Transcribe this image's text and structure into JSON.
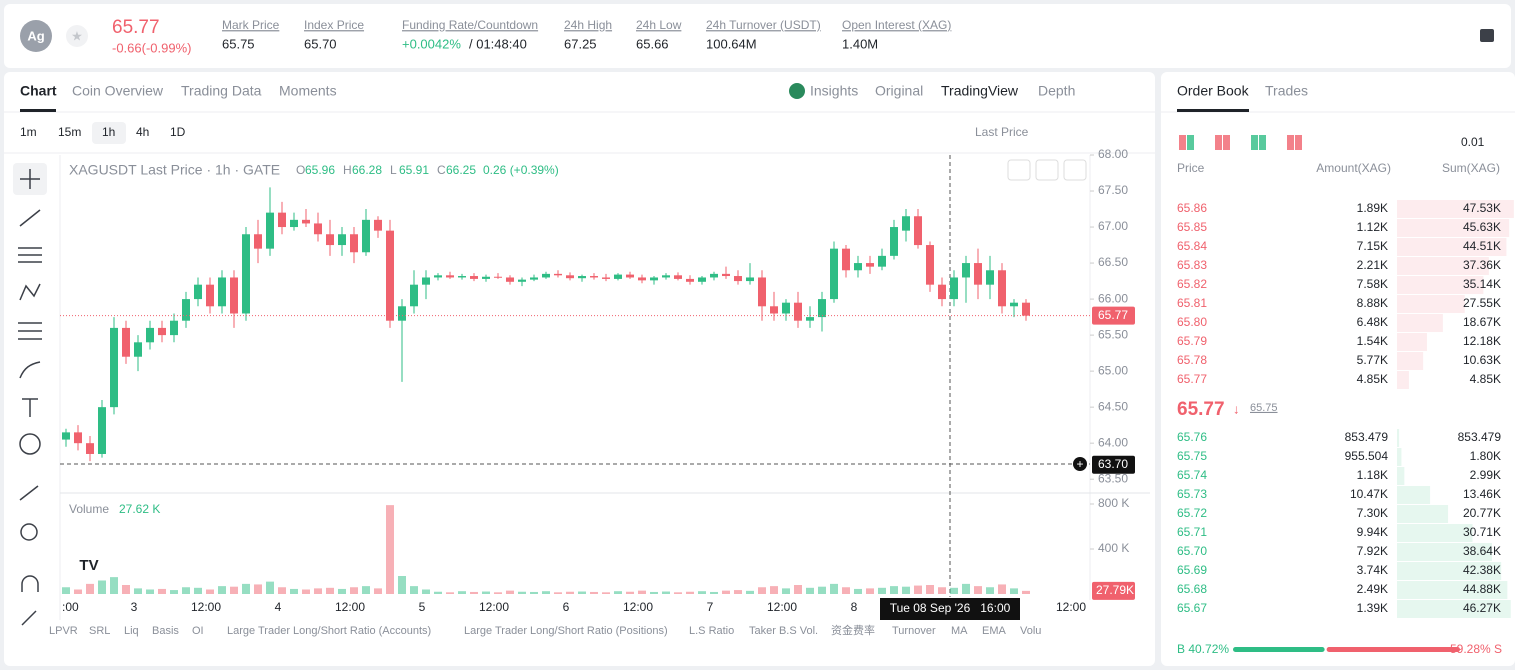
{
  "header": {
    "avatar": "Ag",
    "price": "65.77",
    "change": "-0.66(-0.99%)",
    "stats": [
      {
        "label": "Mark Price",
        "value": "65.75"
      },
      {
        "label": "Index Price",
        "value": "65.70"
      },
      {
        "label": "Funding Rate/Countdown",
        "value": "+0.0042%",
        "countdown": "/ 01:48:40"
      },
      {
        "label": "24h High",
        "value": "67.25"
      },
      {
        "label": "24h Low",
        "value": "65.66"
      },
      {
        "label": "24h Turnover (USDT)",
        "value": "100.64M"
      },
      {
        "label": "Open Interest (XAG)",
        "value": "1.40M"
      }
    ]
  },
  "tabs": [
    "Chart",
    "Coin Overview",
    "Trading Data",
    "Moments"
  ],
  "views": [
    "Insights",
    "Original",
    "TradingView",
    "Depth"
  ],
  "intervals": [
    "1m",
    "15m",
    "1h",
    "4h",
    "1D"
  ],
  "price_type": "Last Price",
  "chart": {
    "legend": "XAGUSDT Last Price · 1h · GATE",
    "ohlc": [
      {
        "key": "O",
        "value": "65.96"
      },
      {
        "key": "H",
        "value": "66.28"
      },
      {
        "key": "L",
        "value": "65.91"
      },
      {
        "key": "C",
        "value": "66.25"
      }
    ],
    "change": "0.26 (+0.39%)",
    "ylim": [
      63.35,
      68.0
    ],
    "yticks": [
      {
        "value": 68,
        "label": "68.00"
      },
      {
        "value": 67.5,
        "label": "67.50"
      },
      {
        "value": 67,
        "label": "67.00"
      },
      {
        "value": 66.5,
        "label": "66.50"
      },
      {
        "value": 66,
        "label": "66.00"
      },
      {
        "value": 65.5,
        "label": "65.50"
      },
      {
        "value": 65,
        "label": "65.00"
      },
      {
        "value": 64.5,
        "label": "64.50"
      },
      {
        "value": 64,
        "label": "64.00"
      },
      {
        "value": 63.5,
        "label": "63.50"
      }
    ],
    "last_price": {
      "value": 65.77,
      "label": "65.77"
    },
    "cursor_price": {
      "value": 63.7,
      "label": "63.70"
    },
    "candles": [
      [
        64.05,
        64.2,
        63.95,
        64.15
      ],
      [
        64.15,
        64.25,
        63.9,
        64.0
      ],
      [
        64.0,
        64.1,
        63.75,
        63.85
      ],
      [
        63.85,
        64.6,
        63.8,
        64.5
      ],
      [
        64.5,
        65.75,
        64.4,
        65.6
      ],
      [
        65.6,
        65.7,
        65.1,
        65.2
      ],
      [
        65.2,
        65.5,
        65.0,
        65.4
      ],
      [
        65.4,
        65.7,
        65.3,
        65.6
      ],
      [
        65.6,
        65.7,
        65.4,
        65.5
      ],
      [
        65.5,
        65.8,
        65.4,
        65.7
      ],
      [
        65.7,
        66.1,
        65.6,
        66.0
      ],
      [
        66.0,
        66.3,
        65.9,
        66.2
      ],
      [
        66.2,
        66.3,
        65.8,
        65.9
      ],
      [
        65.9,
        66.4,
        65.8,
        66.3
      ],
      [
        66.3,
        66.4,
        65.6,
        65.8
      ],
      [
        65.8,
        67.0,
        65.7,
        66.9
      ],
      [
        66.9,
        67.1,
        66.5,
        66.7
      ],
      [
        66.7,
        67.55,
        66.6,
        67.2
      ],
      [
        67.2,
        67.35,
        66.9,
        67.0
      ],
      [
        67.0,
        67.2,
        66.95,
        67.1
      ],
      [
        67.1,
        67.25,
        67.0,
        67.05
      ],
      [
        67.05,
        67.2,
        66.8,
        66.9
      ],
      [
        66.9,
        67.1,
        66.6,
        66.75
      ],
      [
        66.75,
        67.0,
        66.6,
        66.9
      ],
      [
        66.9,
        67.0,
        66.5,
        66.65
      ],
      [
        66.65,
        67.25,
        66.6,
        67.1
      ],
      [
        67.1,
        67.15,
        66.85,
        66.95
      ],
      [
        66.95,
        67.1,
        65.6,
        65.7
      ],
      [
        65.7,
        66.0,
        64.85,
        65.9
      ],
      [
        65.9,
        66.4,
        65.8,
        66.2
      ],
      [
        66.2,
        66.4,
        66.0,
        66.3
      ],
      [
        66.3,
        66.36,
        66.26,
        66.33
      ],
      [
        66.33,
        66.38,
        66.28,
        66.3
      ],
      [
        66.3,
        66.35,
        66.27,
        66.32
      ],
      [
        66.32,
        66.36,
        66.25,
        66.28
      ],
      [
        66.28,
        66.34,
        66.24,
        66.31
      ],
      [
        66.31,
        66.36,
        66.28,
        66.3
      ],
      [
        66.3,
        66.33,
        66.2,
        66.24
      ],
      [
        66.24,
        66.3,
        66.18,
        66.27
      ],
      [
        66.27,
        66.34,
        66.25,
        66.3
      ],
      [
        66.3,
        66.38,
        66.28,
        66.35
      ],
      [
        66.35,
        66.4,
        66.3,
        66.33
      ],
      [
        66.33,
        66.37,
        66.26,
        66.29
      ],
      [
        66.29,
        66.34,
        66.24,
        66.32
      ],
      [
        66.32,
        66.36,
        66.27,
        66.3
      ],
      [
        66.3,
        66.35,
        66.25,
        66.28
      ],
      [
        66.28,
        66.36,
        66.26,
        66.34
      ],
      [
        66.34,
        66.38,
        66.28,
        66.3
      ],
      [
        66.3,
        66.34,
        66.22,
        66.26
      ],
      [
        66.26,
        66.32,
        66.2,
        66.3
      ],
      [
        66.3,
        66.36,
        66.27,
        66.33
      ],
      [
        66.33,
        66.37,
        66.26,
        66.28
      ],
      [
        66.28,
        66.33,
        66.2,
        66.24
      ],
      [
        66.24,
        66.32,
        66.2,
        66.3
      ],
      [
        66.3,
        66.38,
        66.26,
        66.35
      ],
      [
        66.35,
        66.45,
        66.28,
        66.32
      ],
      [
        66.32,
        66.4,
        66.2,
        66.25
      ],
      [
        66.25,
        66.5,
        66.2,
        66.3
      ],
      [
        66.3,
        66.4,
        65.7,
        65.9
      ],
      [
        65.9,
        66.1,
        65.7,
        65.8
      ],
      [
        65.8,
        66.0,
        65.7,
        65.95
      ],
      [
        65.95,
        66.1,
        65.6,
        65.7
      ],
      [
        65.7,
        65.9,
        65.6,
        65.75
      ],
      [
        65.75,
        66.1,
        65.55,
        66.0
      ],
      [
        66.0,
        66.8,
        65.95,
        66.7
      ],
      [
        66.7,
        66.75,
        66.3,
        66.4
      ],
      [
        66.4,
        66.6,
        66.3,
        66.5
      ],
      [
        66.5,
        66.6,
        66.35,
        66.45
      ],
      [
        66.45,
        66.7,
        66.4,
        66.6
      ],
      [
        66.6,
        67.1,
        66.55,
        67.0
      ],
      [
        66.95,
        67.25,
        66.8,
        67.15
      ],
      [
        67.15,
        67.25,
        66.7,
        66.75
      ],
      [
        66.75,
        66.8,
        66.1,
        66.2
      ],
      [
        66.2,
        66.3,
        65.9,
        66.0
      ],
      [
        66.0,
        66.4,
        65.9,
        66.3
      ],
      [
        66.3,
        66.6,
        65.95,
        66.5
      ],
      [
        66.5,
        66.7,
        66.0,
        66.2
      ],
      [
        66.2,
        66.6,
        66.0,
        66.4
      ],
      [
        66.4,
        66.5,
        65.8,
        65.9
      ],
      [
        65.9,
        66.0,
        65.75,
        65.95
      ],
      [
        65.95,
        66.0,
        65.7,
        65.77
      ]
    ],
    "volume_label": "Volume",
    "volume_value": "27.62 K",
    "vlim": [
      0,
      800000
    ],
    "vticks": [
      {
        "value": 800000,
        "label": "800 K"
      },
      {
        "value": 400000,
        "label": "400 K"
      }
    ],
    "last_volume": {
      "value": 27790,
      "label": "27.79K"
    },
    "volumes": [
      60000,
      40000,
      90000,
      120000,
      150000,
      80000,
      50000,
      40000,
      45000,
      35000,
      60000,
      55000,
      40000,
      70000,
      65000,
      90000,
      85000,
      110000,
      60000,
      45000,
      40000,
      50000,
      55000,
      45000,
      60000,
      70000,
      50000,
      790000,
      160000,
      70000,
      40000,
      20000,
      15000,
      25000,
      18000,
      22000,
      15000,
      30000,
      20000,
      18000,
      25000,
      15000,
      20000,
      22000,
      18000,
      15000,
      25000,
      20000,
      30000,
      18000,
      22000,
      15000,
      20000,
      25000,
      18000,
      30000,
      35000,
      28000,
      60000,
      70000,
      50000,
      80000,
      55000,
      65000,
      90000,
      60000,
      45000,
      50000,
      55000,
      70000,
      65000,
      75000,
      80000,
      60000,
      55000,
      90000,
      70000,
      60000,
      85000,
      50000,
      27790
    ],
    "time_labels": [
      ":00",
      "3",
      "12:00",
      "4",
      "12:00",
      "5",
      "12:00",
      "6",
      "12:00",
      "7",
      "12:00",
      "8",
      "12:00"
    ],
    "cursor_time": "Tue 08 Sep '26   16:00",
    "indicators": [
      "LPVR",
      "SRL",
      "Liq",
      "Basis",
      "OI",
      "Large Trader Long/Short Ratio (Accounts)",
      "Large Trader Long/Short Ratio (Positions)",
      "L.S Ratio",
      "Taker B.S Vol.",
      "资金费率",
      "Turnover",
      "MA",
      "EMA",
      "Volu"
    ]
  },
  "order_book": {
    "tabs": [
      "Order Book",
      "Trades"
    ],
    "precision": "0.01",
    "columns": [
      "Price",
      "Amount(XAG)",
      "Sum(XAG)"
    ],
    "asks": [
      {
        "price": "65.86",
        "amount": "1.89K",
        "sum": {
          "value": 47530,
          "label": "47.53K"
        }
      },
      {
        "price": "65.85",
        "amount": "1.12K",
        "sum": {
          "value": 45630,
          "label": "45.63K"
        }
      },
      {
        "price": "65.84",
        "amount": "7.15K",
        "sum": {
          "value": 44510,
          "label": "44.51K"
        }
      },
      {
        "price": "65.83",
        "amount": "2.21K",
        "sum": {
          "value": 37360,
          "label": "37.36K"
        }
      },
      {
        "price": "65.82",
        "amount": "7.58K",
        "sum": {
          "value": 35140,
          "label": "35.14K"
        }
      },
      {
        "price": "65.81",
        "amount": "8.88K",
        "sum": {
          "value": 27550,
          "label": "27.55K"
        }
      },
      {
        "price": "65.80",
        "amount": "6.48K",
        "sum": {
          "value": 18670,
          "label": "18.67K"
        }
      },
      {
        "price": "65.79",
        "amount": "1.54K",
        "sum": {
          "value": 12180,
          "label": "12.18K"
        }
      },
      {
        "price": "65.78",
        "amount": "5.77K",
        "sum": {
          "value": 10630,
          "label": "10.63K"
        }
      },
      {
        "price": "65.77",
        "amount": "4.85K",
        "sum": {
          "value": 4850,
          "label": "4.85K"
        }
      }
    ],
    "last": "65.77",
    "mark": "65.75",
    "bids": [
      {
        "price": "65.76",
        "amount": "853.479",
        "sum": {
          "value": 853.479,
          "label": "853.479"
        }
      },
      {
        "price": "65.75",
        "amount": "955.504",
        "sum": {
          "value": 1800,
          "label": "1.80K"
        }
      },
      {
        "price": "65.74",
        "amount": "1.18K",
        "sum": {
          "value": 2990,
          "label": "2.99K"
        }
      },
      {
        "price": "65.73",
        "amount": "10.47K",
        "sum": {
          "value": 13460,
          "label": "13.46K"
        }
      },
      {
        "price": "65.72",
        "amount": "7.30K",
        "sum": {
          "value": 20770,
          "label": "20.77K"
        }
      },
      {
        "price": "65.71",
        "amount": "9.94K",
        "sum": {
          "value": 30710,
          "label": "30.71K"
        }
      },
      {
        "price": "65.70",
        "amount": "7.92K",
        "sum": {
          "value": 38640,
          "label": "38.64K"
        }
      },
      {
        "price": "65.69",
        "amount": "3.74K",
        "sum": {
          "value": 42380,
          "label": "42.38K"
        }
      },
      {
        "price": "65.68",
        "amount": "2.49K",
        "sum": {
          "value": 44880,
          "label": "44.88K"
        }
      },
      {
        "price": "65.67",
        "amount": "1.39K",
        "sum": {
          "value": 46270,
          "label": "46.27K"
        }
      }
    ],
    "buy": {
      "value": 40.72,
      "label": "B 40.72%"
    },
    "sell": {
      "value": 59.28,
      "label": "59.28% S"
    }
  }
}
